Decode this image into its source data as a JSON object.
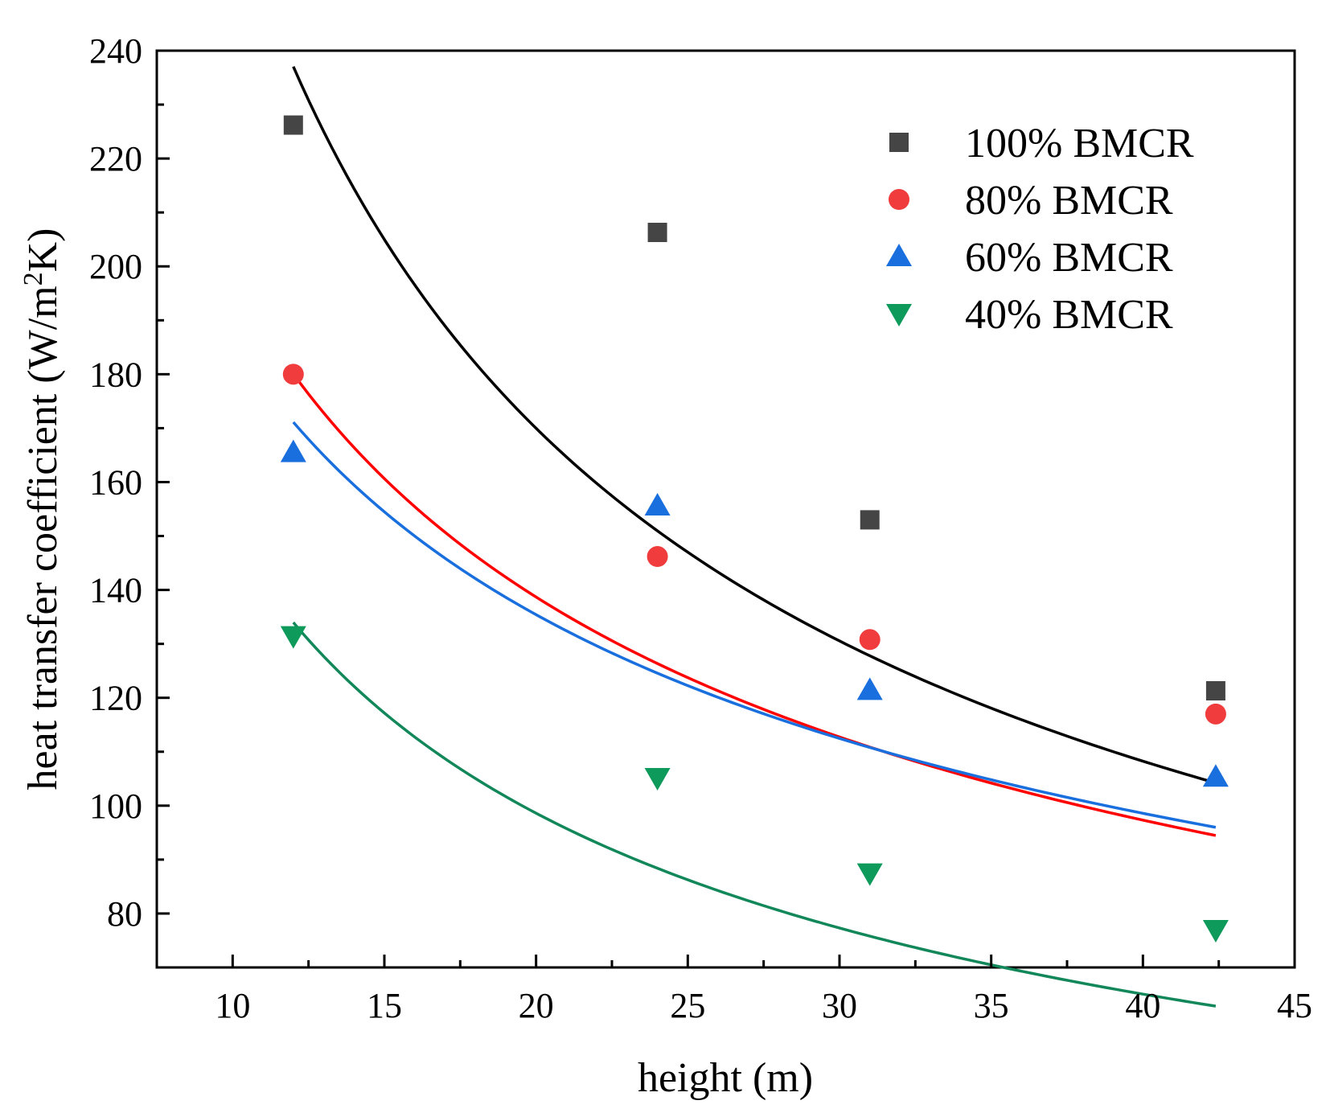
{
  "chart_data": {
    "type": "scatter",
    "title": "",
    "xlabel": "height (m)",
    "ylabel_main": "heat transfer coefficient (W/m",
    "ylabel_sup": "2",
    "ylabel_end": "K)",
    "xlim": [
      7.5,
      45
    ],
    "ylim": [
      70,
      240
    ],
    "x_ticks": [
      10,
      15,
      20,
      25,
      30,
      35,
      40,
      45
    ],
    "y_ticks": [
      80,
      100,
      120,
      140,
      160,
      180,
      200,
      220,
      240
    ],
    "x": [
      12,
      24,
      31,
      42.4
    ],
    "legend_position": "top-right",
    "series": [
      {
        "name": "100% BMCR",
        "marker": "square",
        "color": "#454545",
        "line_color": "#000000",
        "values": [
          226.2,
          206.3,
          153,
          121.3
        ],
        "fit": {
          "x_start": 12,
          "x_end": 42.4,
          "a": 1195,
          "b": -0.651
        }
      },
      {
        "name": "80% BMCR",
        "marker": "circle",
        "color": "#f03c3c",
        "line_color": "#ff0000",
        "values": [
          180,
          146.2,
          130.8,
          117
        ],
        "fit": {
          "x_start": 12,
          "x_end": 42.4,
          "a": 641,
          "b": -0.511
        }
      },
      {
        "name": "60% BMCR",
        "marker": "triangle-up",
        "color": "#1a6fde",
        "line_color": "#1a6fde",
        "values": [
          165.5,
          155.6,
          121.4,
          105.3
        ],
        "fit": {
          "x_start": 12,
          "x_end": 42.4,
          "a": 534,
          "b": -0.458
        }
      },
      {
        "name": "40% BMCR",
        "marker": "triangle-down",
        "color": "#0e9a5a",
        "line_color": "#12875a",
        "values": [
          131.5,
          105.2,
          87.5,
          77
        ],
        "fit": {
          "x_start": 12,
          "x_end": 42.4,
          "a": 595,
          "b": -0.6
        }
      }
    ]
  }
}
